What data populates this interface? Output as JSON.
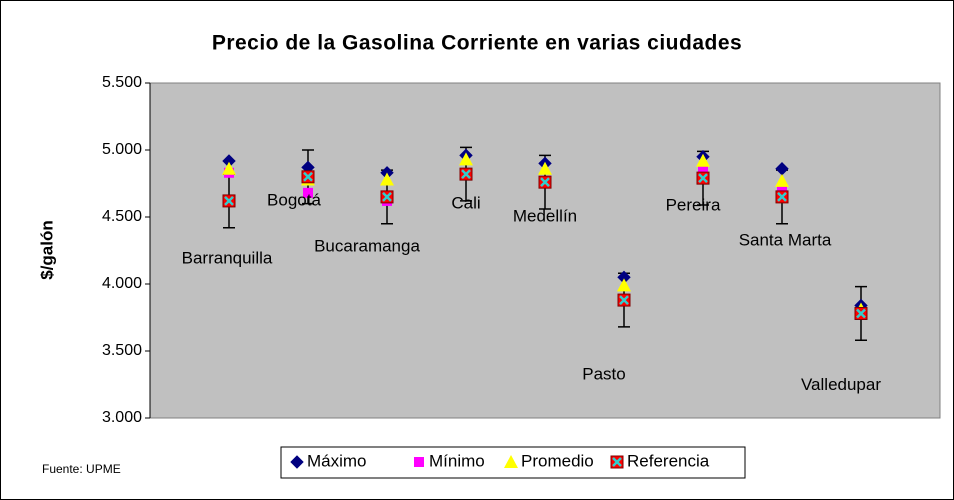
{
  "chart_data": {
    "type": "scatter",
    "title": "Precio de la Gasolina Corriente en varias ciudades",
    "y_label": "$/galón",
    "source": "Fuente: UPME",
    "categories": [
      "Barranquilla",
      "Bogotá",
      "Bucaramanga",
      "Cali",
      "Medellín",
      "Pasto",
      "Pereira",
      "Santa Marta",
      "Valledupar"
    ],
    "x": [
      1,
      2,
      3,
      4,
      5,
      6,
      7,
      8,
      9
    ],
    "xlim": [
      0,
      10
    ],
    "ylim": [
      3000,
      5500
    ],
    "yticks": [
      {
        "value": 3000,
        "label": "3.000"
      },
      {
        "value": 3500,
        "label": "3.500"
      },
      {
        "value": 4000,
        "label": "4.000"
      },
      {
        "value": 4500,
        "label": "4.500"
      },
      {
        "value": 5000,
        "label": "5.000"
      },
      {
        "value": 5500,
        "label": "5.500"
      }
    ],
    "series": [
      {
        "name": "Máximo",
        "color": "#000080",
        "marker": "diamond",
        "values": [
          4918,
          4870,
          4830,
          4960,
          4900,
          4050,
          4950,
          4860,
          3840
        ]
      },
      {
        "name": "Mínimo",
        "color": "#ff00ff",
        "marker": "square",
        "values": [
          4830,
          4680,
          4620,
          4820,
          4760,
          3870,
          4860,
          4690,
          3770
        ]
      },
      {
        "name": "Promedio",
        "color": "#ffff00",
        "marker": "triangle",
        "values": [
          4860,
          4780,
          4780,
          4930,
          4860,
          3990,
          4920,
          4770,
          3810
        ]
      },
      {
        "name": "Referencia",
        "color": "#ff0000",
        "marker": "xsquare",
        "values": [
          4620,
          4800,
          4650,
          4820,
          4760,
          3880,
          4790,
          4650,
          3780
        ],
        "error": [
          200,
          200,
          200,
          200,
          200,
          200,
          200,
          200,
          200
        ]
      }
    ]
  }
}
